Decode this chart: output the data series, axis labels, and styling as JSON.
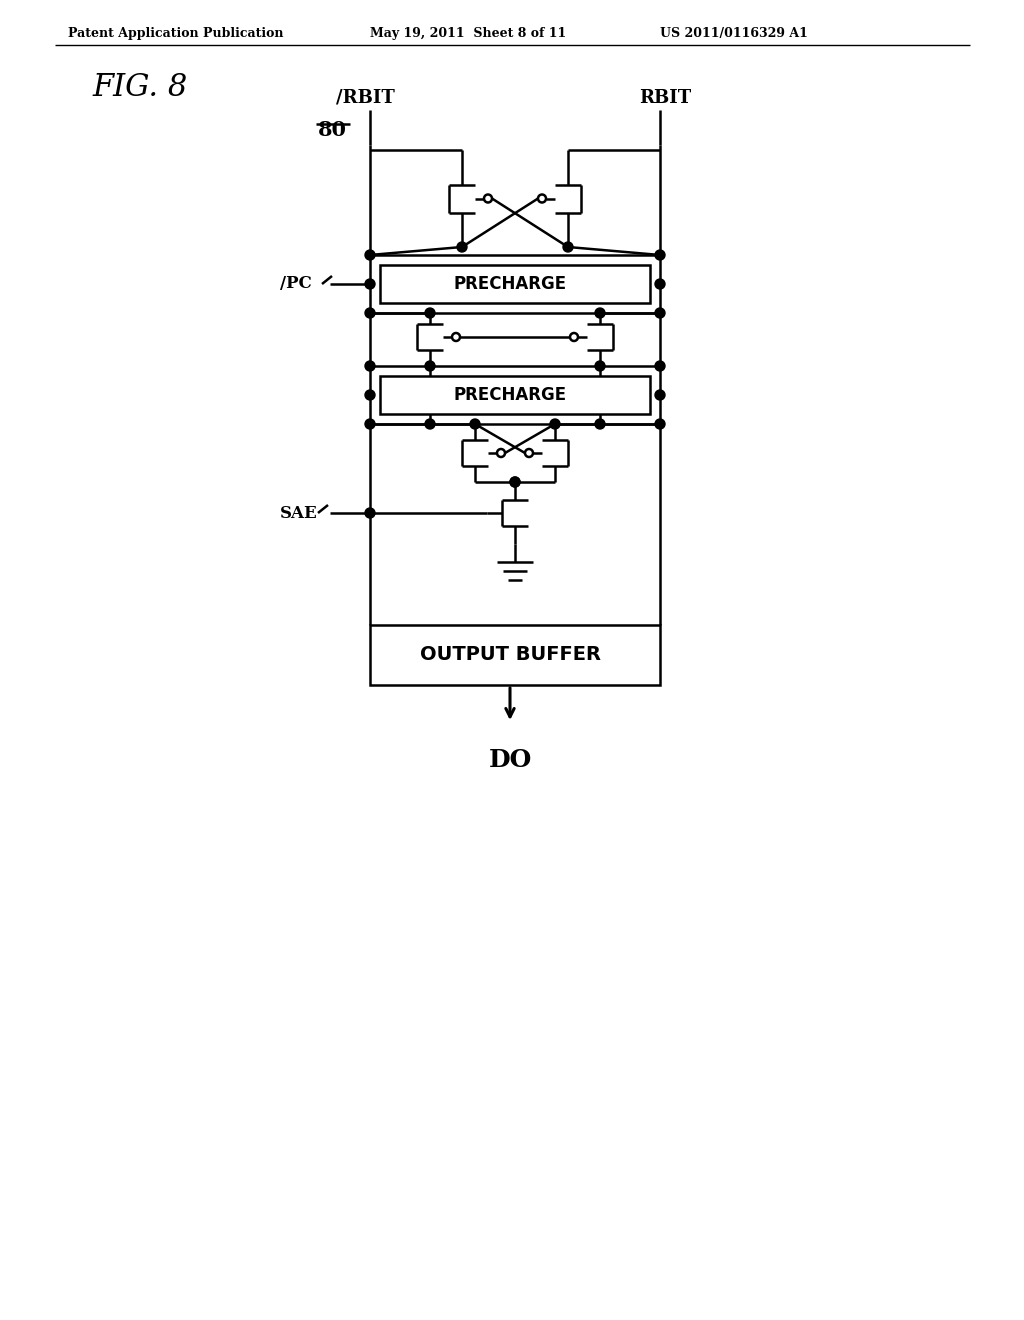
{
  "title": "FIG. 8",
  "ref_label": "80",
  "header_left": "Patent Application Publication",
  "header_mid": "May 19, 2011  Sheet 8 of 11",
  "header_right": "US 2011/0116329 A1",
  "label_rbit_bar": "/RBIT",
  "label_rbit": "RBIT",
  "label_pc_bar": "/PC",
  "label_sae": "SAE",
  "label_precharge1": "PRECHARGE",
  "label_precharge2": "PRECHARGE",
  "label_output_buffer": "OUTPUT BUFFER",
  "label_do": "DO",
  "bg_color": "#ffffff",
  "line_color": "#000000",
  "default_lw": 1.8
}
